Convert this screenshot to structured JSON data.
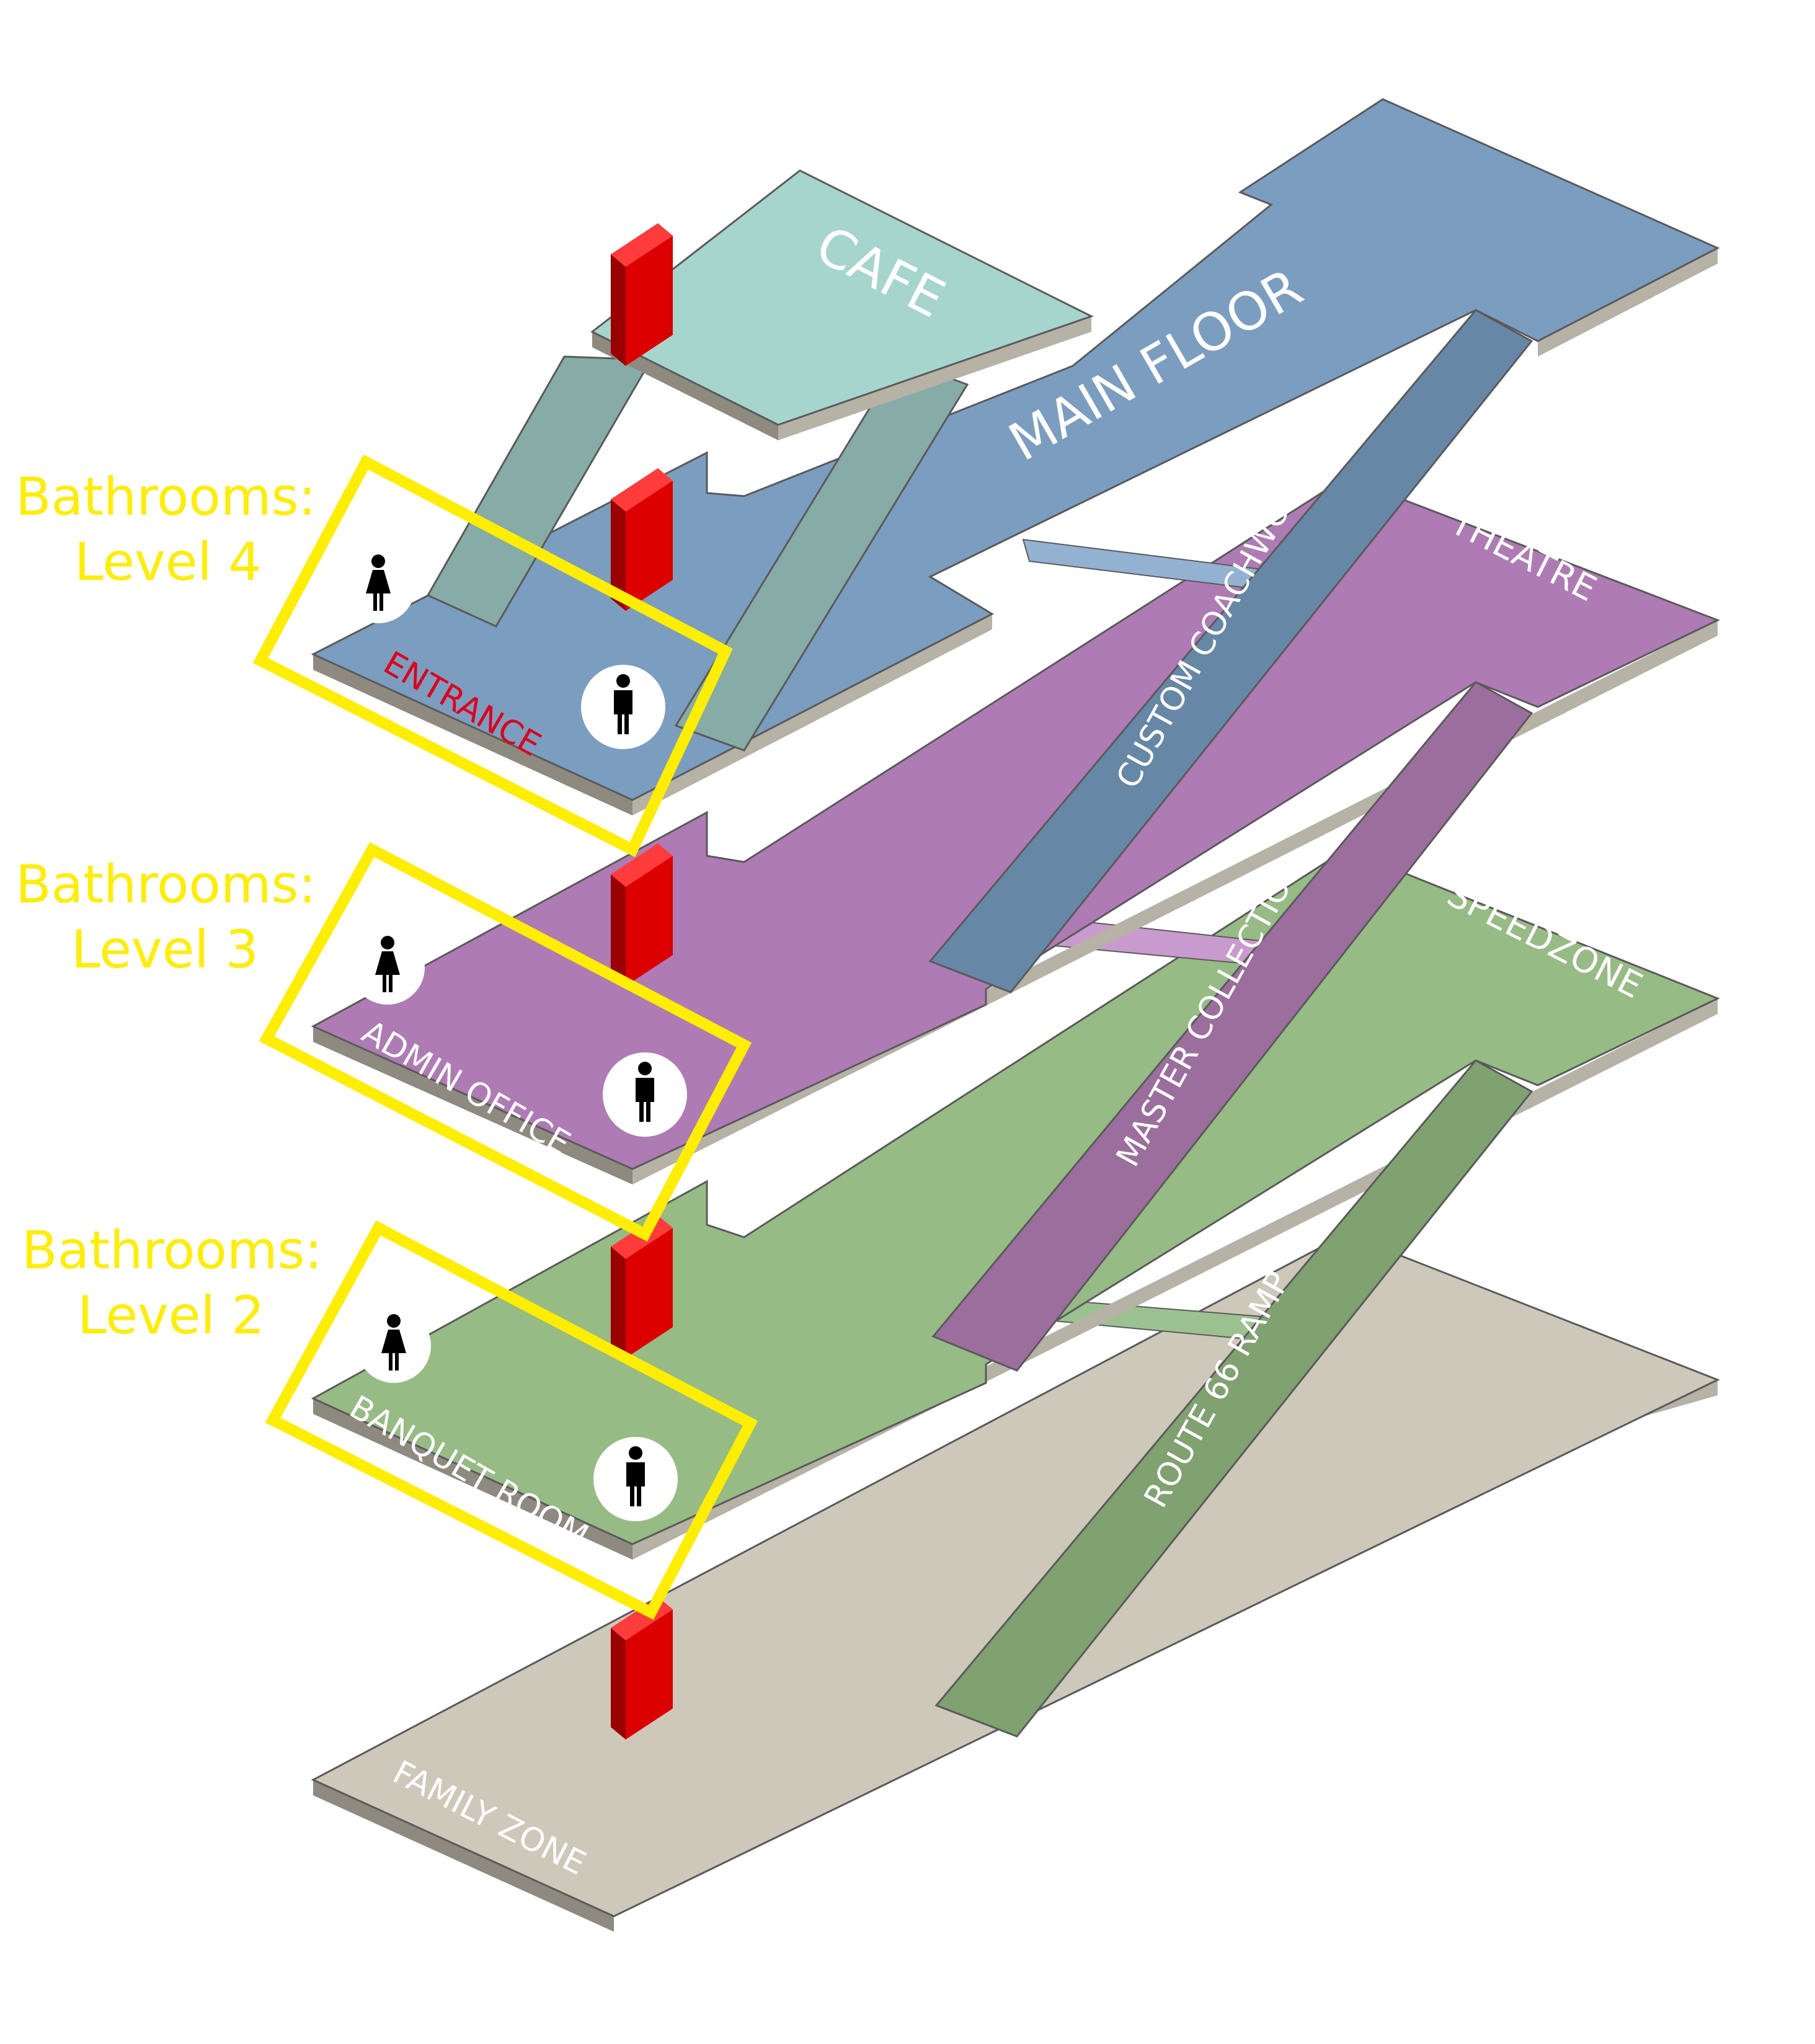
{
  "colors": {
    "blue": "#7a9dc0",
    "blue_ramp": "#6787a6",
    "teal": "#a6d5cd",
    "teal_ramp": "#87aba6",
    "purple": "#af7bb5",
    "purple_ramp": "#9b6e9e",
    "green": "#96bb85",
    "green_ramp": "#7fa270",
    "tan": "#cec8ba",
    "slab_edge": "#b7b2a6",
    "red_block": "#dd0000",
    "highlight": "#ffee00",
    "entrance_text": "#e0001b"
  },
  "floors": [
    {
      "name": "CAFE",
      "color": "teal"
    },
    {
      "name": "MAIN FLOOR",
      "color": "blue"
    },
    {
      "name": "THEATRE",
      "color": "purple"
    },
    {
      "name": "SPEEDZONE",
      "color": "green"
    },
    {
      "name": "FAMILY ZONE",
      "color": "tan"
    }
  ],
  "ramps": [
    {
      "name": "CUSTOM COACHWORKS"
    },
    {
      "name": "MASTER COLLECTION"
    },
    {
      "name": "ROUTE 66 RAMP"
    }
  ],
  "rooms": [
    {
      "name": "ENTRANCE"
    },
    {
      "name": "ADMIN OFFICE"
    },
    {
      "name": "BANQUET ROOM"
    }
  ],
  "callouts": [
    {
      "line1": "Bathrooms:",
      "line2": "Level 4"
    },
    {
      "line1": "Bathrooms:",
      "line2": "Level 3"
    },
    {
      "line1": "Bathrooms:",
      "line2": "Level 2"
    }
  ],
  "icons": [
    "womens-restroom-icon",
    "mens-restroom-icon",
    "elevator-block-icon"
  ]
}
